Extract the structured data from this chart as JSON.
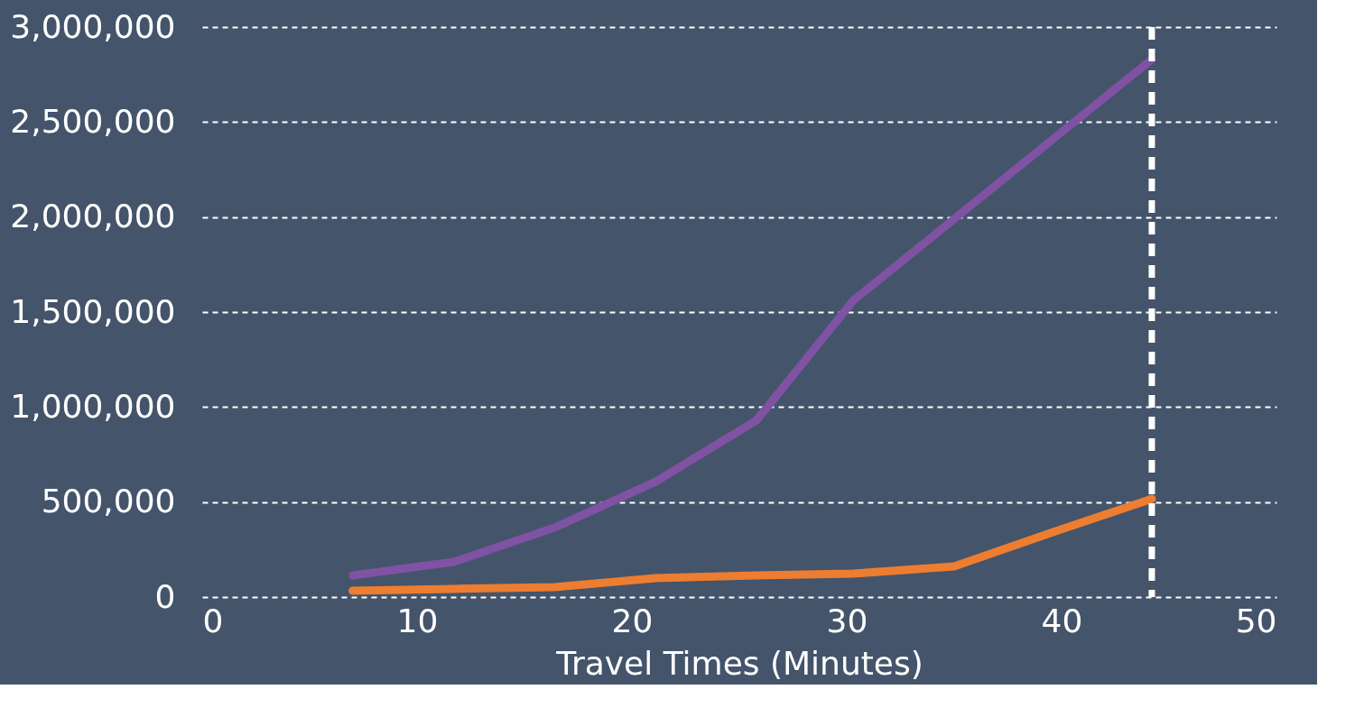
{
  "chart_data": {
    "type": "line",
    "xlabel": "Travel Times (Minutes)",
    "xlim": [
      0,
      50
    ],
    "xticks": [
      0,
      10,
      20,
      30,
      40,
      50
    ],
    "ylim": [
      0,
      3000000
    ],
    "yticks": [
      0,
      {
        "value": 500000,
        "label": "500,000"
      },
      {
        "value": 1000000,
        "label": "1,000,000"
      },
      {
        "value": 1500000,
        "label": "1,500,000"
      },
      {
        "value": 2000000,
        "label": "2,000,000"
      },
      {
        "value": 2500000,
        "label": "2,500,000"
      },
      {
        "value": 3000000,
        "label": "3,000,000"
      }
    ],
    "grid": "y",
    "line_style": "solid",
    "marker": "none",
    "series": [
      {
        "color": "#8052a3",
        "x": [
          7,
          11.7,
          16.4,
          21.1,
          25.8,
          30.3,
          35,
          39.6,
          44.2
        ],
        "values": [
          114000,
          185000,
          365000,
          607000,
          930000,
          1560000,
          1990000,
          2410000,
          2830000
        ]
      },
      {
        "color": "#ed7d31",
        "x": [
          7,
          11.7,
          16.4,
          21.1,
          25.8,
          30.3,
          35,
          39.6,
          44.2
        ],
        "values": [
          33000,
          43000,
          52000,
          100000,
          114000,
          123000,
          161000,
          342000,
          517000
        ]
      }
    ],
    "ref_lines": [
      {
        "axis": "x",
        "value": 44.2,
        "color": "#ffffff",
        "line_style": "dashed"
      }
    ]
  }
}
